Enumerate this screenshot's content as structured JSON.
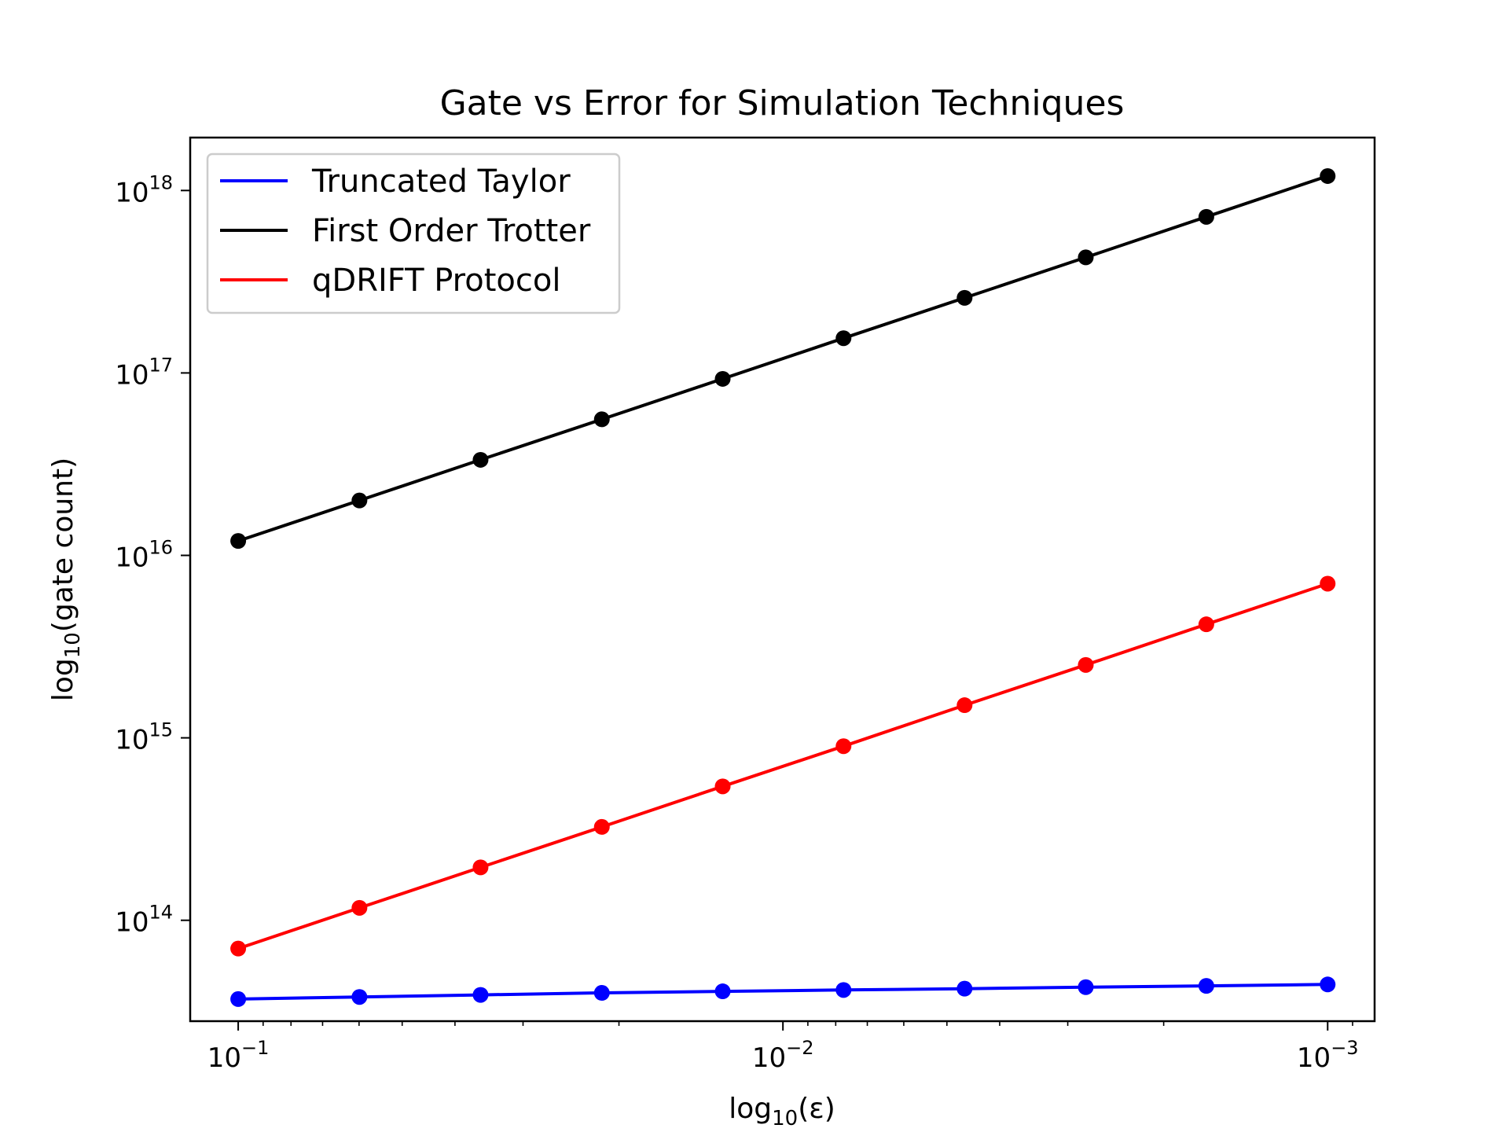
{
  "chart_data": {
    "type": "line",
    "title": "Gate vs Error for Simulation Techniques",
    "xlabel": {
      "base": "log",
      "sub": "10",
      "rest": "(ε)"
    },
    "ylabel": {
      "base": "log",
      "sub": "10",
      "rest": "(gate count)"
    },
    "x_scale": "log",
    "y_scale": "log",
    "x_inverted": true,
    "xlim": [
      0.1225,
      0.00082
    ],
    "ylim": [
      28000000000000.0,
      1.95e+18
    ],
    "x_ticks": [
      {
        "value": 0.1,
        "base": "10",
        "exp": "−1"
      },
      {
        "value": 0.01,
        "base": "10",
        "exp": "−2"
      },
      {
        "value": 0.001,
        "base": "10",
        "exp": "−3"
      }
    ],
    "y_ticks": [
      {
        "value": 100000000000000.0,
        "base": "10",
        "exp": "14"
      },
      {
        "value": 1000000000000000.0,
        "base": "10",
        "exp": "15"
      },
      {
        "value": 1e+16,
        "base": "10",
        "exp": "16"
      },
      {
        "value": 1e+17,
        "base": "10",
        "exp": "17"
      },
      {
        "value": 1e+18,
        "base": "10",
        "exp": "18"
      }
    ],
    "x": [
      0.1,
      0.0599,
      0.0359,
      0.0215,
      0.0129,
      0.00774,
      0.00464,
      0.00278,
      0.00167,
      0.001
    ],
    "series": [
      {
        "name": "Truncated Taylor",
        "color": "#0000ff",
        "values": [
          37000000000000.0,
          38000000000000.0,
          39000000000000.0,
          40000000000000.0,
          40800000000000.0,
          41500000000000.0,
          42200000000000.0,
          43000000000000.0,
          43700000000000.0,
          44500000000000.0
        ]
      },
      {
        "name": "First Order Trotter",
        "color": "#000000",
        "values": [
          1.2e+16,
          2e+16,
          3.34e+16,
          5.57e+16,
          9.28e+16,
          1.55e+17,
          2.58e+17,
          4.3e+17,
          7.17e+17,
          1.2e+18
        ]
      },
      {
        "name": "qDRIFT Protocol",
        "color": "#ff0000",
        "values": [
          70000000000000.0,
          117000000000000.0,
          195000000000000.0,
          325000000000000.0,
          542000000000000.0,
          900000000000000.0,
          1510000000000000.0,
          2510000000000000.0,
          4190000000000000.0,
          7000000000000000.0
        ]
      }
    ],
    "grid": false,
    "legend_position": "top-left"
  }
}
